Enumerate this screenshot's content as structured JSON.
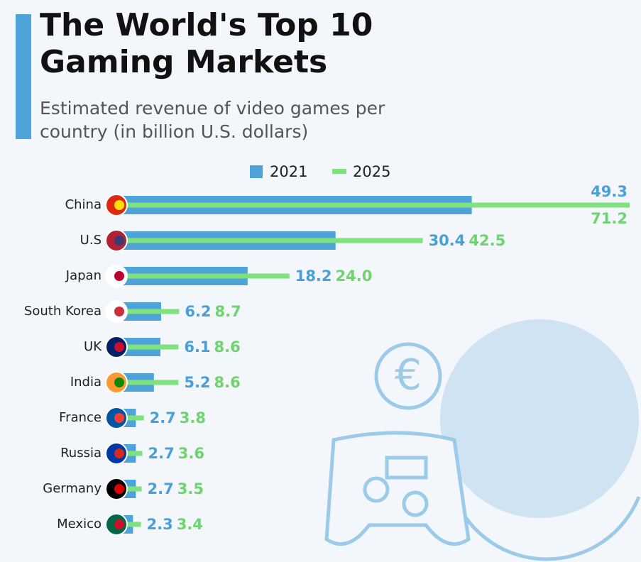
{
  "chart_data": {
    "type": "bar",
    "title": "The World's Top 10 Gaming Markets",
    "subtitle": "Estimated revenue of video games per country (in billion U.S. dollars)",
    "categories": [
      "China",
      "U.S",
      "Japan",
      "South Korea",
      "UK",
      "India",
      "France",
      "Russia",
      "Germany",
      "Mexico"
    ],
    "series": [
      {
        "name": "2021",
        "color": "#4ea3d9",
        "values": [
          49.3,
          30.4,
          18.2,
          6.2,
          6.1,
          5.2,
          2.7,
          2.7,
          2.7,
          2.3
        ],
        "value_labels": [
          "49.3",
          "30.4",
          "18.2",
          "6.2",
          "6.1",
          "5.2",
          "2.7",
          "2.7",
          "2.7",
          "2.3"
        ]
      },
      {
        "name": "2025",
        "color": "#7fe27f",
        "values": [
          71.2,
          42.5,
          24,
          8.7,
          8.6,
          8.6,
          3.8,
          3.6,
          3.5,
          3.4
        ],
        "value_labels": [
          "71.2",
          "42.5",
          "24.0",
          "8.7",
          "8.6",
          "8.6",
          "3.8",
          "3.6",
          "3.5",
          "3.4"
        ]
      }
    ]
  }
}
